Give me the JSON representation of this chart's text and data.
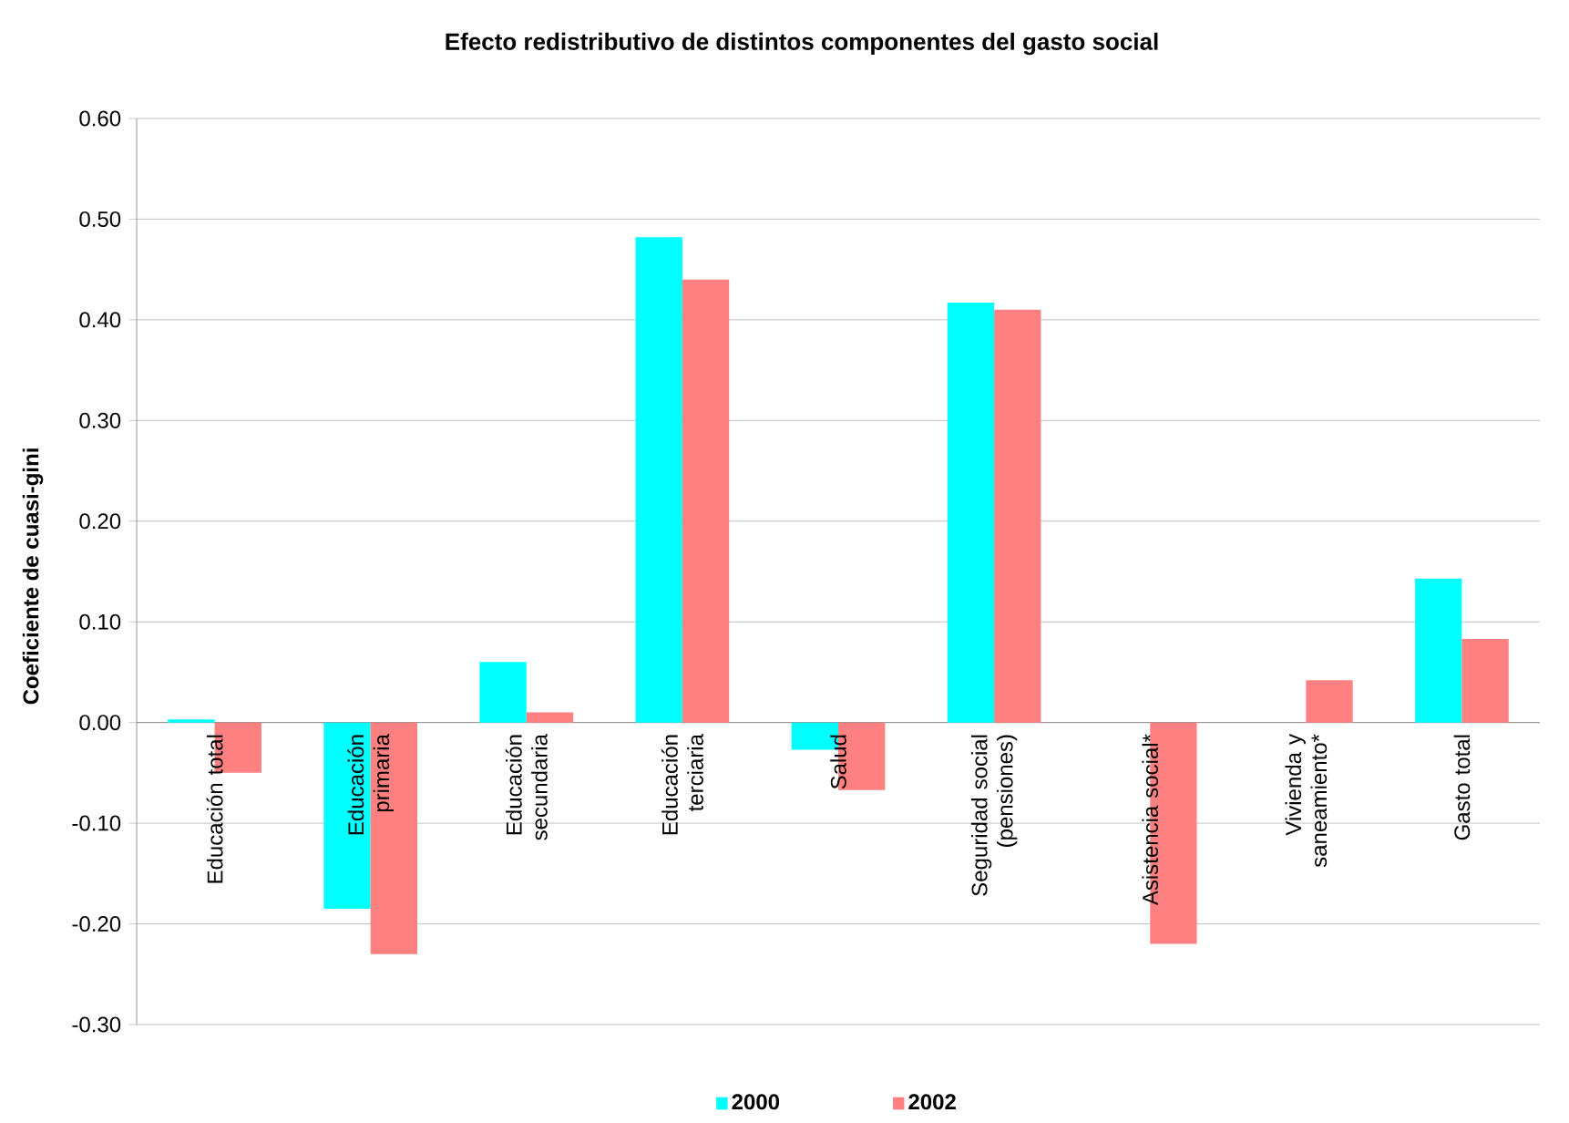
{
  "chart_data": {
    "type": "bar",
    "title": "Efecto redistributivo de distintos componentes del gasto social",
    "ylabel": "Coeficiente de cuasi-gini",
    "categories": [
      "Educación total",
      "Educación primaria",
      "Educación secundaria",
      "Educación terciaria",
      "Salud",
      "Seguridad social (pensiones)",
      "Asistencia social*",
      "Vivienda y saneamiento*",
      "Gasto total"
    ],
    "series": [
      {
        "name": "2000",
        "color": "#00ffff",
        "values": [
          0.003,
          -0.185,
          0.06,
          0.482,
          -0.027,
          0.417,
          null,
          null,
          0.143
        ]
      },
      {
        "name": "2002",
        "color": "#ff8080",
        "values": [
          -0.05,
          -0.23,
          0.01,
          0.44,
          -0.067,
          0.41,
          -0.22,
          0.042,
          0.083
        ]
      }
    ],
    "ylim": [
      -0.3,
      0.6
    ],
    "yticks": [
      {
        "value": -0.3,
        "label": "-0.30"
      },
      {
        "value": -0.2,
        "label": "-0.20"
      },
      {
        "value": -0.1,
        "label": "-0.10"
      },
      {
        "value": 0,
        "label": "0.00"
      },
      {
        "value": 0.1,
        "label": "0.10"
      },
      {
        "value": 0.2,
        "label": "0.20"
      },
      {
        "value": 0.3,
        "label": "0.30"
      },
      {
        "value": 0.4,
        "label": "0.40"
      },
      {
        "value": 0.5,
        "label": "0.50"
      },
      {
        "value": 0.6,
        "label": "0.60"
      }
    ],
    "grid": "y",
    "legend": "bottom"
  }
}
